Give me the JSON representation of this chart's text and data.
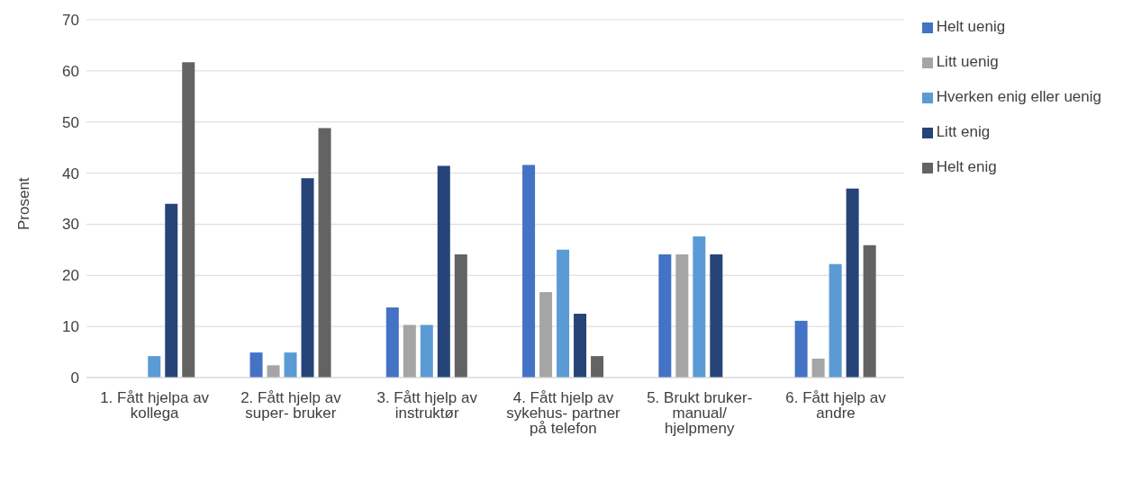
{
  "chart_data": {
    "type": "bar",
    "ylabel": "Prosent",
    "categories": [
      "1. Fått hjelpa av kollega",
      "2. Fått hjelp av super- bruker",
      "3. Fått hjelp av instruktør",
      "4. Fått hjelp av sykehus- partner på telefon",
      "5. Brukt bruker- manual/ hjelpmeny",
      "6. Fått hjelp av andre"
    ],
    "series": [
      {
        "name": "Helt uenig",
        "color": "#4472c4",
        "values": [
          0,
          4.9,
          13.7,
          41.6,
          24.1,
          11.1
        ]
      },
      {
        "name": "Litt uenig",
        "color": "#a5a5a5",
        "values": [
          0,
          2.4,
          10.3,
          16.7,
          24.1,
          3.7
        ]
      },
      {
        "name": "Hverken enig eller uenig",
        "color": "#5b9bd5",
        "values": [
          4.2,
          4.9,
          10.3,
          25,
          27.6,
          22.2
        ]
      },
      {
        "name": "Litt enig",
        "color": "#264478",
        "values": [
          34,
          39,
          41.4,
          12.5,
          24.1,
          37
        ]
      },
      {
        "name": "Helt enig",
        "color": "#636363",
        "values": [
          61.7,
          48.8,
          24.1,
          4.2,
          0,
          25.9
        ]
      }
    ],
    "ylim": [
      0,
      70
    ],
    "yticks": [
      0,
      10,
      20,
      30,
      40,
      50,
      60,
      70
    ],
    "grid": "y",
    "legend": "top right"
  }
}
